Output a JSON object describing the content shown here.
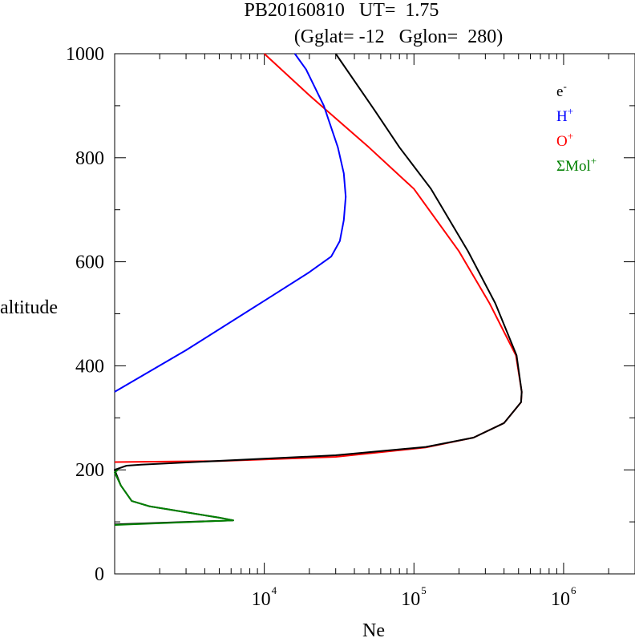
{
  "chart_data": {
    "type": "line",
    "title_line1": "PB20160810   UT=  1.75",
    "title_line2": "(Gglat= -12   Gglon=  280)",
    "xlabel": "Ne",
    "ylabel": "altitude",
    "x_scale": "log",
    "xlim": [
      1000,
      3000000
    ],
    "ylim": [
      0,
      1000
    ],
    "y_ticks": [
      0,
      200,
      400,
      600,
      800,
      1000
    ],
    "x_ticks": [
      {
        "value": 10000,
        "base": "10",
        "exp": "4"
      },
      {
        "value": 100000,
        "base": "10",
        "exp": "5"
      },
      {
        "value": 1000000,
        "base": "10",
        "exp": "6"
      }
    ],
    "grid": false,
    "legend_position": "top-right",
    "series": [
      {
        "key": "O+",
        "name": "O",
        "sup": "+",
        "color": "#ff0000",
        "x": [
          1000,
          5000,
          30000,
          120000,
          250000,
          400000,
          520000,
          525000,
          480000,
          320000,
          200000,
          100000,
          50000,
          20000,
          10000
        ],
        "y": [
          215,
          217,
          225,
          243,
          262,
          290,
          330,
          350,
          420,
          520,
          620,
          740,
          820,
          920,
          1000
        ]
      },
      {
        "key": "e-",
        "name": "e",
        "sup": "-",
        "color": "#000000",
        "x": [
          1000,
          6200,
          5000,
          1700,
          1300,
          1100,
          1000,
          1200,
          1500,
          30000,
          120000,
          250000,
          400000,
          520000,
          525000,
          485000,
          350000,
          230000,
          130000,
          80000,
          55000,
          30000
        ],
        "y": [
          95,
          103,
          108,
          130,
          140,
          170,
          200,
          208,
          210,
          228,
          244,
          262,
          290,
          330,
          350,
          420,
          520,
          620,
          740,
          820,
          890,
          1000
        ]
      },
      {
        "key": "H+",
        "name": "H",
        "sup": "+",
        "color": "#0000ff",
        "x": [
          1000,
          3000,
          10000,
          20000,
          28000,
          32000,
          34000,
          35000,
          34000,
          31000,
          25000,
          19000,
          16000
        ],
        "y": [
          350,
          430,
          525,
          580,
          610,
          640,
          680,
          725,
          770,
          820,
          900,
          970,
          1000
        ]
      },
      {
        "key": "Mol+",
        "name": "ΣMol",
        "sup": "+",
        "color": "#008000",
        "x": [
          1000,
          6200,
          5000,
          1700,
          1300,
          1100,
          1000,
          1050
        ],
        "y": [
          94,
          103,
          108,
          130,
          140,
          170,
          195,
          200
        ]
      }
    ]
  }
}
